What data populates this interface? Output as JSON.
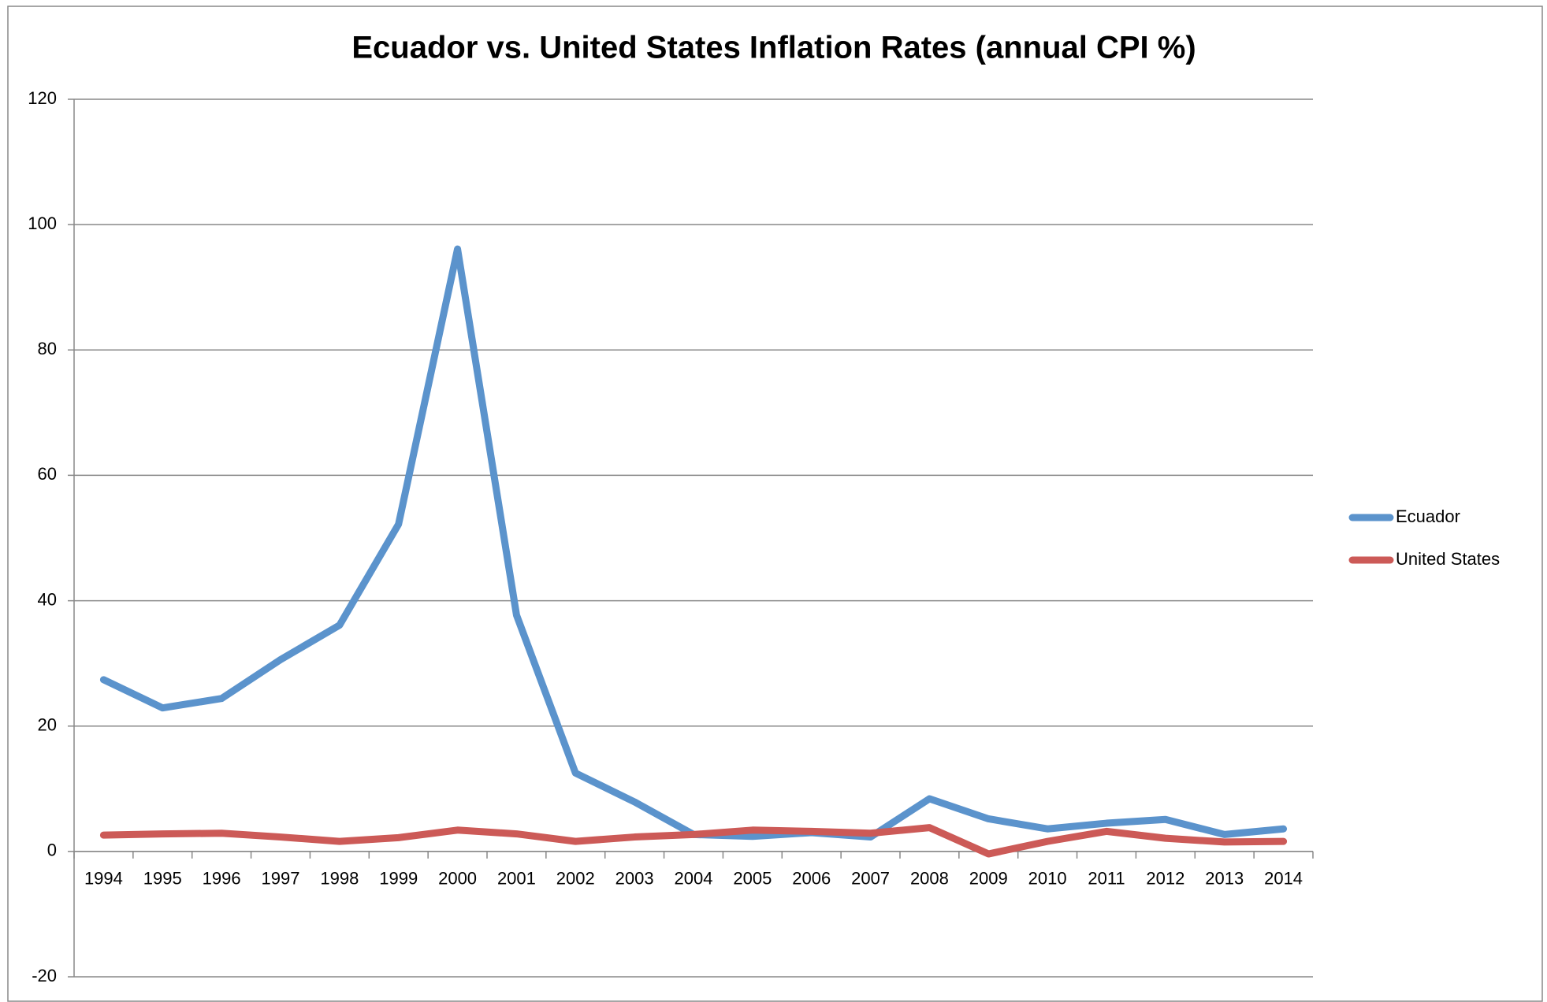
{
  "chart_data": {
    "type": "line",
    "title": "Ecuador vs. United States Inflation Rates (annual CPI %)",
    "categories": [
      "1994",
      "1995",
      "1996",
      "1997",
      "1998",
      "1999",
      "2000",
      "2001",
      "2002",
      "2003",
      "2004",
      "2005",
      "2006",
      "2007",
      "2008",
      "2009",
      "2010",
      "2011",
      "2012",
      "2013",
      "2014"
    ],
    "series": [
      {
        "name": "Ecuador",
        "color": "#5b93cc",
        "values": [
          27.4,
          22.9,
          24.4,
          30.6,
          36.1,
          52.2,
          96.1,
          37.7,
          12.5,
          7.9,
          2.7,
          2.4,
          3.0,
          2.3,
          8.4,
          5.2,
          3.6,
          4.5,
          5.1,
          2.7,
          3.6
        ]
      },
      {
        "name": "United States",
        "color": "#cc5a57",
        "values": [
          2.6,
          2.8,
          2.9,
          2.3,
          1.6,
          2.2,
          3.4,
          2.8,
          1.6,
          2.3,
          2.7,
          3.4,
          3.2,
          2.9,
          3.8,
          -0.4,
          1.6,
          3.2,
          2.1,
          1.5,
          1.6
        ]
      }
    ],
    "ylim": [
      -20,
      120
    ],
    "yticks": [
      -20,
      0,
      20,
      40,
      60,
      80,
      100,
      120
    ],
    "grid": true,
    "legend": "right"
  }
}
